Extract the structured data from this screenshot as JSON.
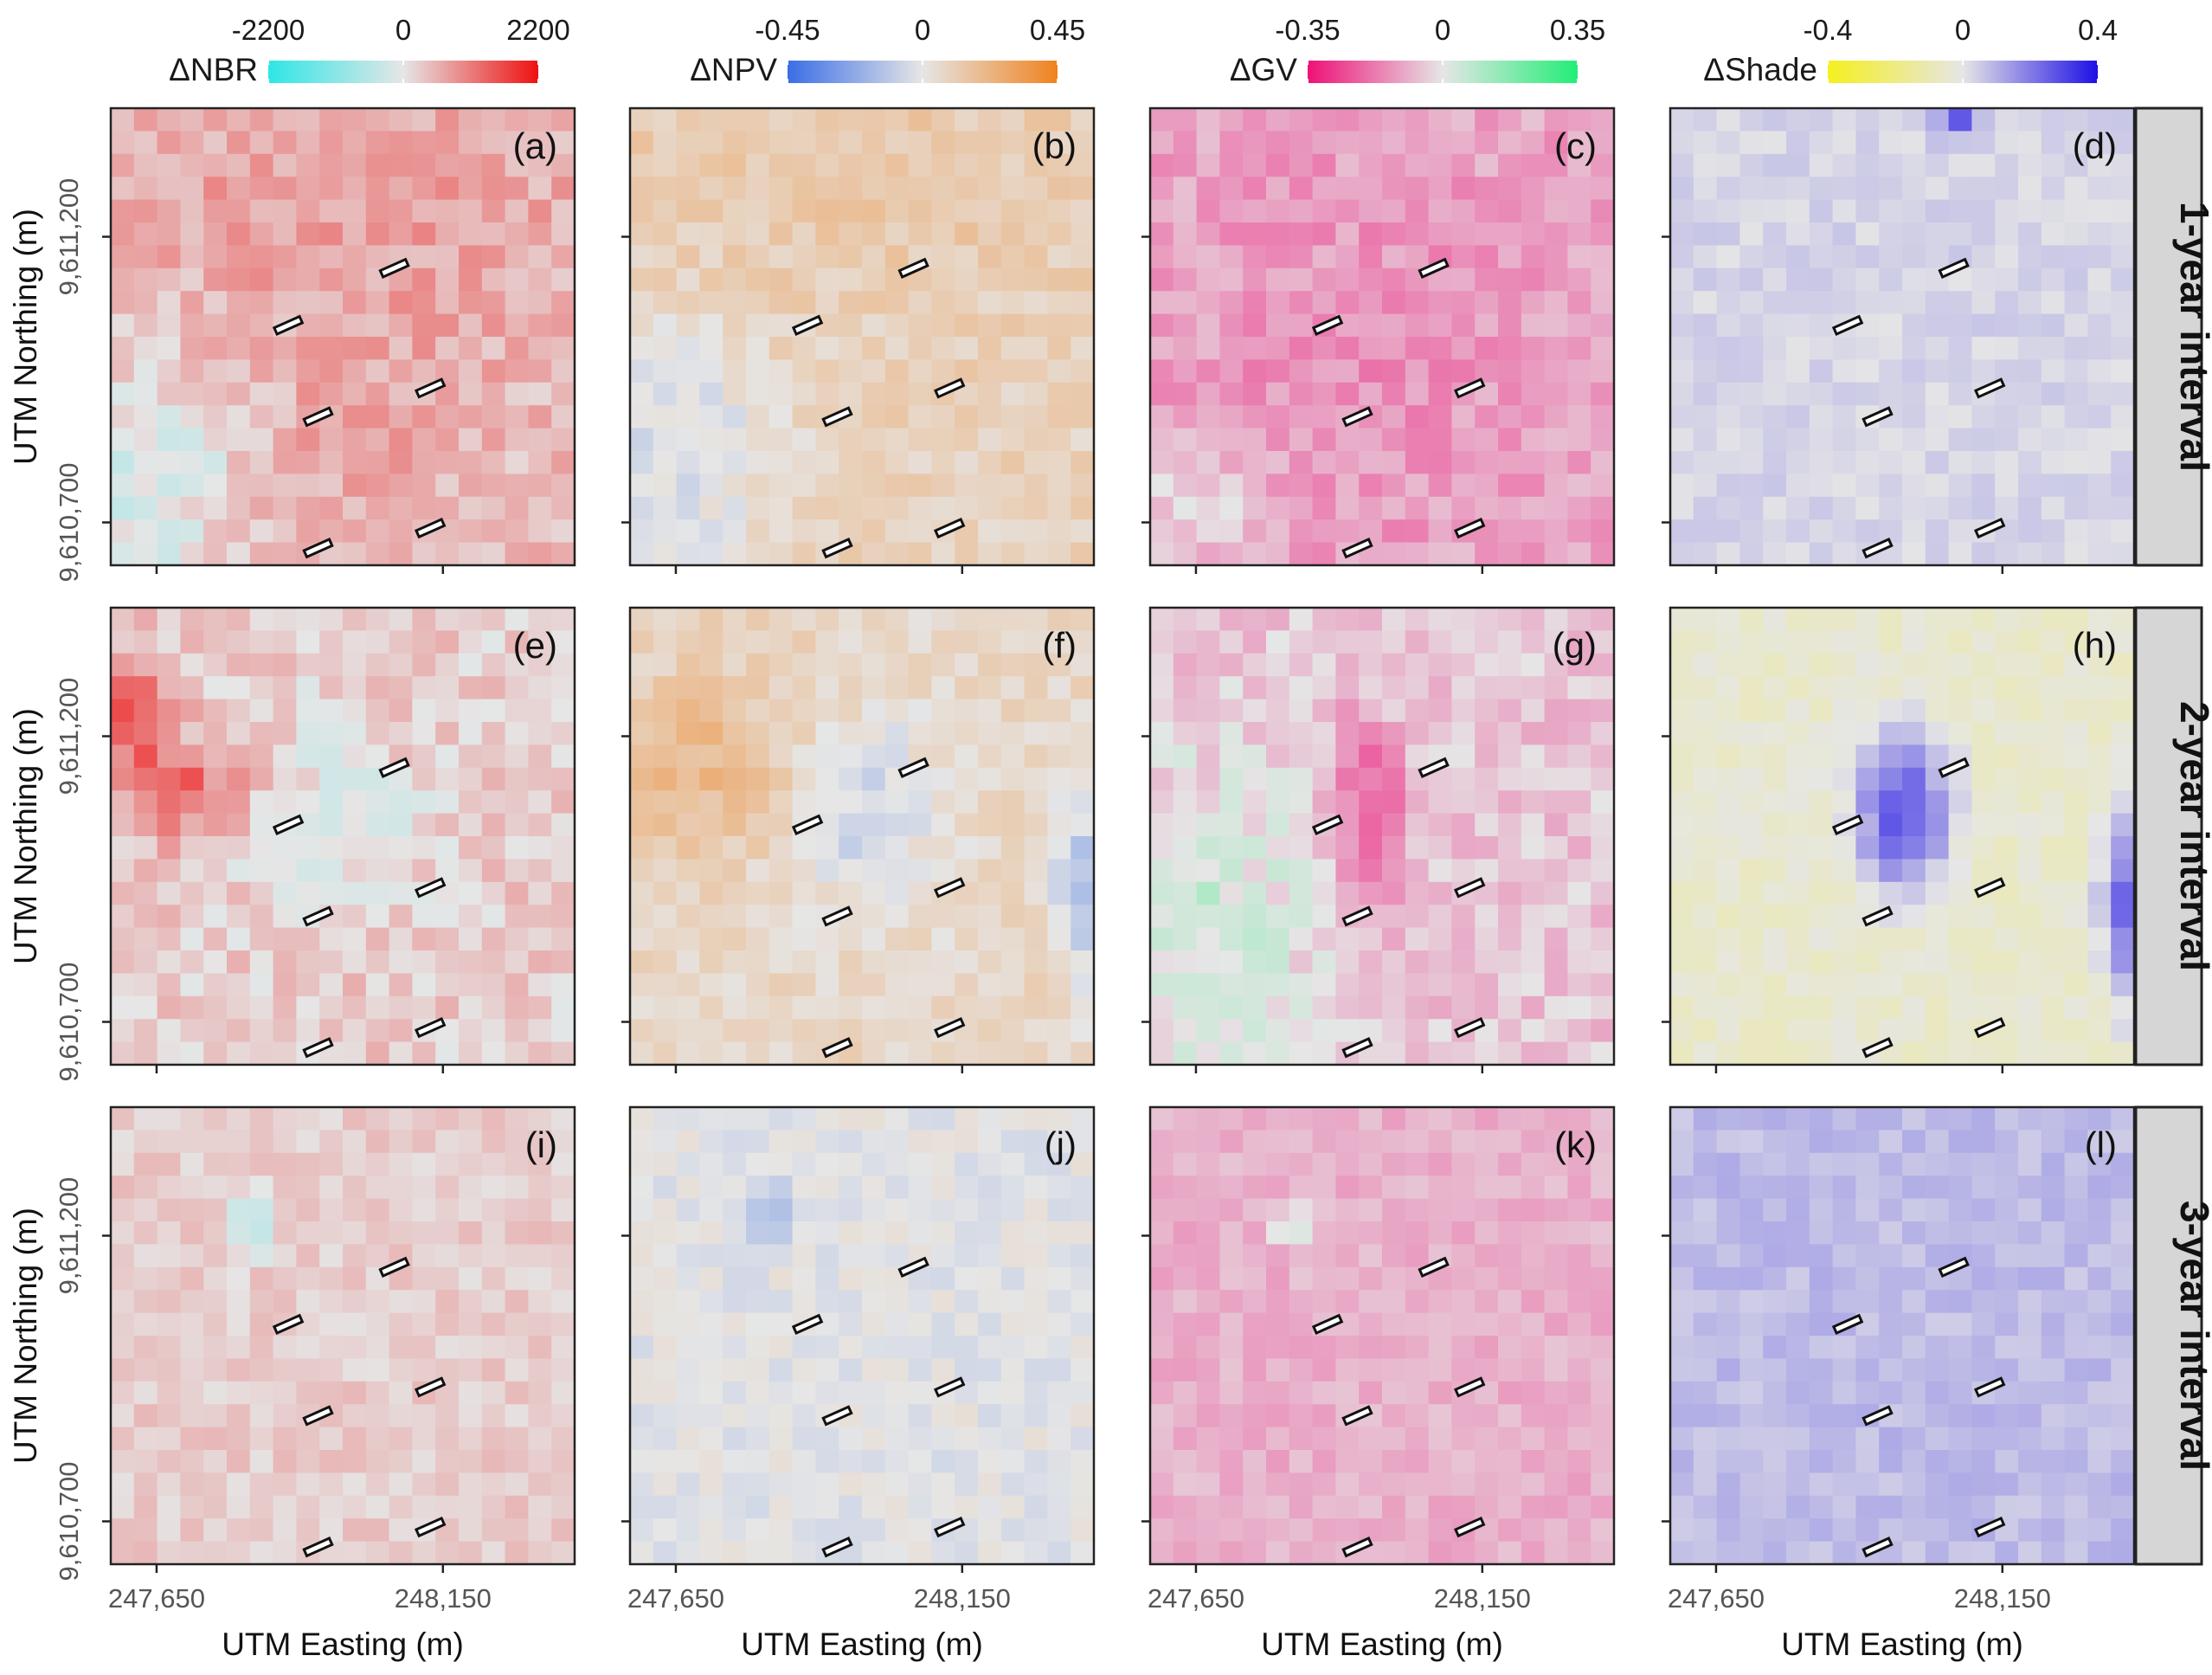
{
  "figure": {
    "xlabel": "UTM Easting (m)",
    "ylabel": "UTM Northing (m)",
    "row_labels": [
      "1-year interval",
      "2-year interval",
      "3-year interval"
    ]
  },
  "chart_data": {
    "type": "heatmap",
    "grid_cells": 20,
    "x_ticks": [
      247650,
      248150
    ],
    "x_tick_labels": [
      "247,650",
      "248,150"
    ],
    "y_ticks": [
      9611200,
      9610700
    ],
    "y_tick_labels": [
      "9,611,200",
      "9,610,700"
    ],
    "x_range": [
      247570,
      248380
    ],
    "y_range": [
      9610625,
      9611425
    ],
    "plot_markers": [
      {
        "x": 247880,
        "y": 9611045
      },
      {
        "x": 248065,
        "y": 9611145
      },
      {
        "x": 247932,
        "y": 9610885
      },
      {
        "x": 248128,
        "y": 9610935
      },
      {
        "x": 247932,
        "y": 9610655
      },
      {
        "x": 248128,
        "y": 9610690
      }
    ],
    "variables": [
      {
        "key": "nbr",
        "label": "ΔNBR",
        "min": -2200,
        "max": 2200,
        "tick_labels": [
          "-2200",
          "0",
          "2200"
        ],
        "colors": {
          "neg": "#2ee6e6",
          "mid": "#e6e6e6",
          "pos": "#ee1111"
        }
      },
      {
        "key": "npv",
        "label": "ΔNPV",
        "min": -0.45,
        "max": 0.45,
        "tick_labels": [
          "-0.45",
          "0",
          "0.45"
        ],
        "colors": {
          "neg": "#3a6ee6",
          "mid": "#e6e6e6",
          "pos": "#f0821e"
        }
      },
      {
        "key": "gv",
        "label": "ΔGV",
        "min": -0.35,
        "max": 0.35,
        "tick_labels": [
          "-0.35",
          "0",
          "0.35"
        ],
        "colors": {
          "neg": "#ee1077",
          "mid": "#e6e6e6",
          "pos": "#22ee77"
        }
      },
      {
        "key": "shade",
        "label": "ΔShade",
        "min": -0.4,
        "max": 0.4,
        "tick_labels": [
          "-0.4",
          "0",
          "0.4"
        ],
        "colors": {
          "neg": "#f5f01e",
          "mid": "#e6e6e6",
          "pos": "#1e10e6"
        }
      }
    ],
    "panels": [
      {
        "letter": "(a)",
        "row": 0,
        "var": "nbr",
        "base": 0.18,
        "noise": 0.15,
        "features": [
          {
            "cx": 0.5,
            "cy": 0.2,
            "sx": 0.45,
            "sy": 0.25,
            "amp": 0.15
          },
          {
            "cx": 0.5,
            "cy": 0.75,
            "sx": 0.25,
            "sy": 0.2,
            "amp": 0.1
          },
          {
            "cx": 0.1,
            "cy": 0.8,
            "sx": 0.15,
            "sy": 0.2,
            "amp": -0.3
          }
        ]
      },
      {
        "letter": "(b)",
        "row": 0,
        "var": "npv",
        "base": 0.2,
        "noise": 0.12,
        "features": [
          {
            "cx": 0.5,
            "cy": 0.15,
            "sx": 0.45,
            "sy": 0.2,
            "amp": 0.1
          },
          {
            "cx": 0.1,
            "cy": 0.75,
            "sx": 0.15,
            "sy": 0.2,
            "amp": -0.3
          }
        ]
      },
      {
        "letter": "(c)",
        "row": 0,
        "var": "gv",
        "base": -0.3,
        "noise": 0.15,
        "features": [
          {
            "cx": 0.45,
            "cy": 0.55,
            "sx": 0.3,
            "sy": 0.3,
            "amp": -0.1
          },
          {
            "cx": 0.1,
            "cy": 0.85,
            "sx": 0.1,
            "sy": 0.1,
            "amp": 0.3
          }
        ]
      },
      {
        "letter": "(d)",
        "row": 0,
        "var": "shade",
        "base": 0.08,
        "noise": 0.07,
        "features": [
          {
            "cx": 0.62,
            "cy": 0.02,
            "sx": 0.03,
            "sy": 0.03,
            "amp": 0.6
          }
        ]
      },
      {
        "letter": "(e)",
        "row": 1,
        "var": "nbr",
        "base": 0.12,
        "noise": 0.15,
        "features": [
          {
            "cx": 0.15,
            "cy": 0.4,
            "sx": 0.1,
            "sy": 0.08,
            "amp": 0.5
          },
          {
            "cx": 0.05,
            "cy": 0.22,
            "sx": 0.05,
            "sy": 0.08,
            "amp": 0.6
          },
          {
            "cx": 0.45,
            "cy": 0.45,
            "sx": 0.15,
            "sy": 0.15,
            "amp": -0.15
          }
        ]
      },
      {
        "letter": "(f)",
        "row": 1,
        "var": "npv",
        "base": 0.15,
        "noise": 0.12,
        "features": [
          {
            "cx": 0.15,
            "cy": 0.35,
            "sx": 0.15,
            "sy": 0.15,
            "amp": 0.3
          },
          {
            "cx": 0.5,
            "cy": 0.45,
            "sx": 0.12,
            "sy": 0.15,
            "amp": -0.3
          },
          {
            "cx": 0.97,
            "cy": 0.6,
            "sx": 0.04,
            "sy": 0.15,
            "amp": -0.4
          }
        ]
      },
      {
        "letter": "(g)",
        "row": 1,
        "var": "gv",
        "base": -0.15,
        "noise": 0.15,
        "features": [
          {
            "cx": 0.47,
            "cy": 0.45,
            "sx": 0.05,
            "sy": 0.14,
            "amp": -0.5
          },
          {
            "cx": 0.12,
            "cy": 0.72,
            "sx": 0.15,
            "sy": 0.25,
            "amp": 0.3
          }
        ]
      },
      {
        "letter": "(h)",
        "row": 1,
        "var": "shade",
        "base": -0.12,
        "noise": 0.08,
        "features": [
          {
            "cx": 0.5,
            "cy": 0.45,
            "sx": 0.07,
            "sy": 0.12,
            "amp": 0.8
          },
          {
            "cx": 0.97,
            "cy": 0.65,
            "sx": 0.03,
            "sy": 0.14,
            "amp": 0.7
          }
        ]
      },
      {
        "letter": "(i)",
        "row": 2,
        "var": "nbr",
        "base": 0.12,
        "noise": 0.1,
        "features": [
          {
            "cx": 0.3,
            "cy": 0.25,
            "sx": 0.03,
            "sy": 0.05,
            "amp": -0.4
          }
        ]
      },
      {
        "letter": "(j)",
        "row": 2,
        "var": "npv",
        "base": -0.02,
        "noise": 0.1,
        "features": [
          {
            "cx": 0.3,
            "cy": 0.24,
            "sx": 0.03,
            "sy": 0.04,
            "amp": -0.5
          }
        ]
      },
      {
        "letter": "(k)",
        "row": 2,
        "var": "gv",
        "base": -0.25,
        "noise": 0.1,
        "features": [
          {
            "cx": 0.3,
            "cy": 0.26,
            "sx": 0.02,
            "sy": 0.03,
            "amp": 0.5
          }
        ]
      },
      {
        "letter": "(l)",
        "row": 2,
        "var": "shade",
        "base": 0.2,
        "noise": 0.08,
        "features": []
      }
    ]
  }
}
